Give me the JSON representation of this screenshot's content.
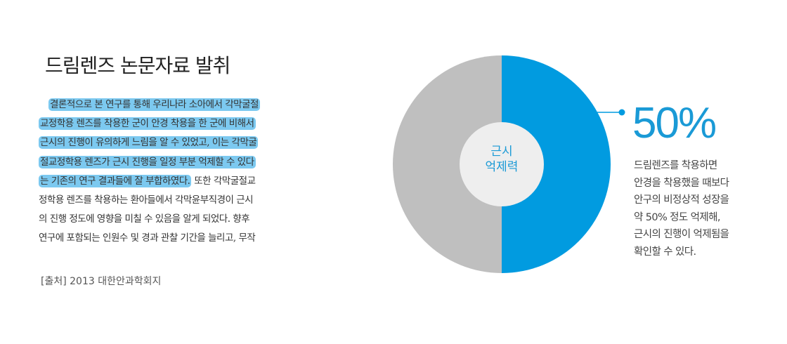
{
  "title": "드림렌즈 논문자료 발취",
  "paragraph": {
    "lines": [
      {
        "highlight": "결론적으로 본 연구를 통해 우리나라 소아에서 각막굴절",
        "rest": "",
        "indent": true
      },
      {
        "highlight": "교정학용 렌즈를 착용한 군이 안경 착용을 한 군에 비해서",
        "rest": ""
      },
      {
        "highlight": "근시의 진행이 유의하게 느림을 알 수 있었고, 이는 각막굴",
        "rest": ""
      },
      {
        "highlight": "절교정학용 렌즈가 근시 진행을 일정 부분 억제할 수 있다",
        "rest": ""
      },
      {
        "highlight": "는 기존의 연구 결과들에 잘 부합하였다.",
        "rest": " 또한 각막굴절교"
      },
      {
        "highlight": "",
        "rest": "정학용 렌즈를 착용하는 환아들에서 각막윤부직경이 근시"
      },
      {
        "highlight": "",
        "rest": "의 진행 정도에 영향을 미칠 수 있음을 알게 되었다. 향후"
      },
      {
        "highlight": "",
        "rest": "연구에 포함되는 인원수 및 경과 관찰 기간을 늘리고, 무작"
      }
    ]
  },
  "source": "[출처] 2013 대한안과학회지",
  "chart_data": {
    "type": "pie",
    "center_label": [
      "근시",
      "억제력"
    ],
    "slices": [
      {
        "value": 50,
        "color": "#019be0"
      },
      {
        "value": 50,
        "color": "#bfbfbf"
      }
    ],
    "annotation": {
      "value_text": "50%",
      "description": [
        "드림렌즈를 착용하면",
        "안경을 착용했을 때보다",
        "안구의 비정상적 성장을",
        "약 50% 정도 억제해,",
        "근시의 진행이 억제됨을",
        "확인할 수 있다."
      ]
    }
  },
  "colors": {
    "accent": "#019be0",
    "highlight": "#7cc9f0",
    "neutral": "#bfbfbf"
  }
}
